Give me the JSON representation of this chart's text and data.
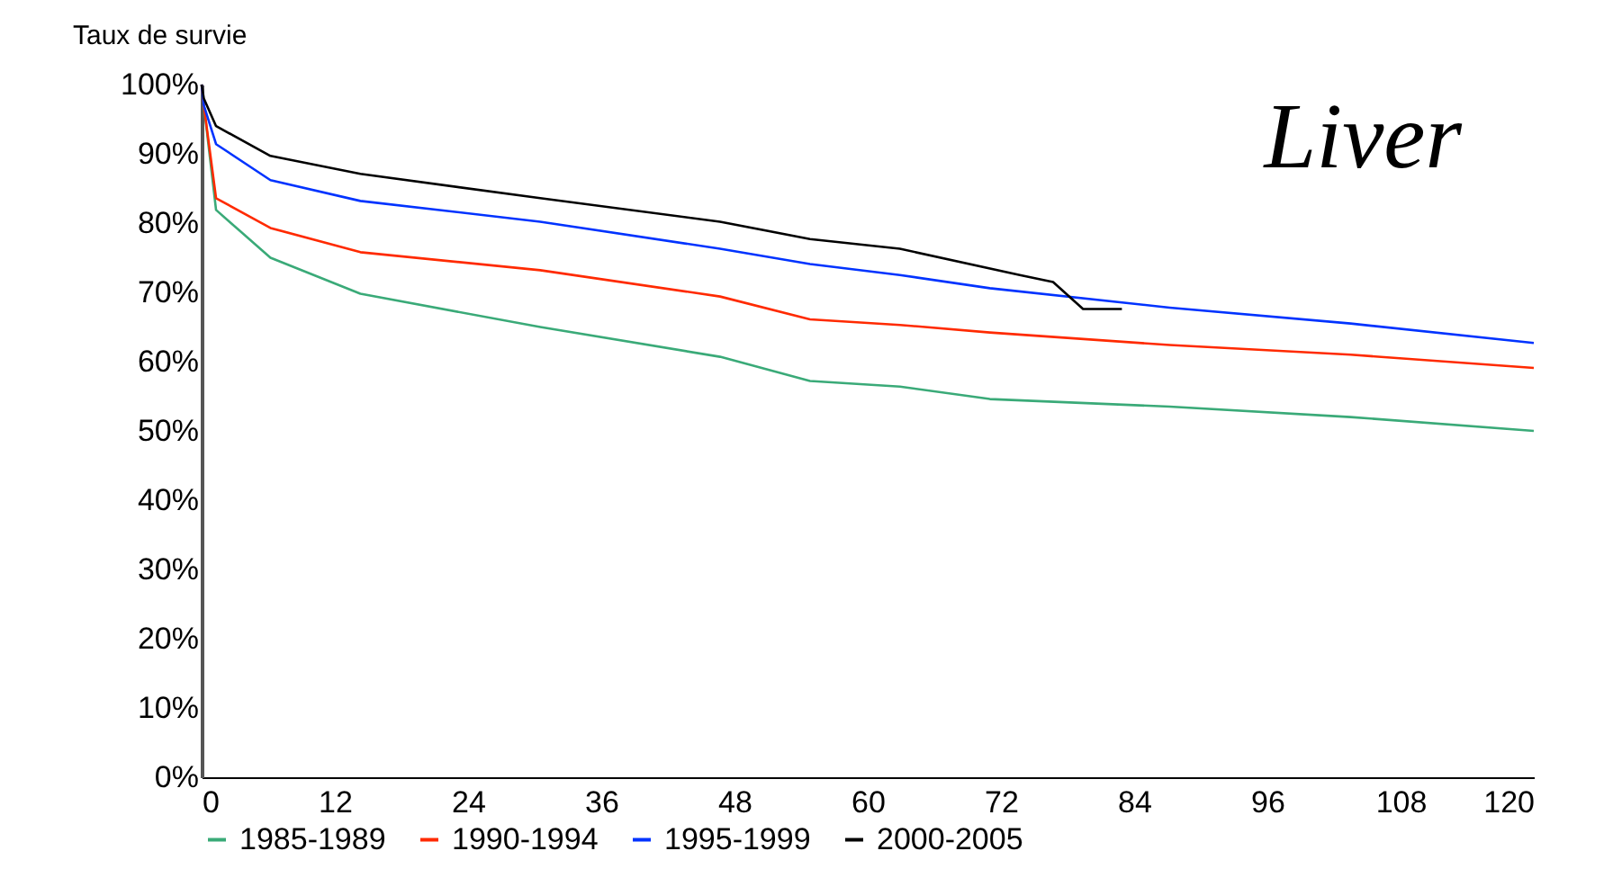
{
  "chart_data": {
    "type": "line",
    "ylabel": "Taux de survie",
    "annotations": [
      "Liver"
    ],
    "xlim": [
      0,
      120
    ],
    "xticks": [
      0,
      12,
      24,
      36,
      48,
      60,
      72,
      84,
      96,
      108,
      120
    ],
    "ylim": [
      0,
      100
    ],
    "yticks": [
      {
        "value": 0,
        "label": "0%"
      },
      {
        "value": 10,
        "label": "10%"
      },
      {
        "value": 20,
        "label": "20%"
      },
      {
        "value": 30,
        "label": "30%"
      },
      {
        "value": 40,
        "label": "40%"
      },
      {
        "value": 50,
        "label": "50%"
      },
      {
        "value": 60,
        "label": "60%"
      },
      {
        "value": 70,
        "label": "70%"
      },
      {
        "value": 80,
        "label": "80%"
      },
      {
        "value": 90,
        "label": "90%"
      },
      {
        "value": 100,
        "label": "100%"
      }
    ],
    "grid": false,
    "legend": "bottom",
    "marker": "none",
    "line_style": "solid",
    "series": [
      {
        "name": "1985-1989",
        "color": "#3aaa78",
        "x": [
          0,
          0.2,
          1.3,
          6.2,
          14.3,
          30.5,
          46.7,
          54.8,
          62.9,
          71,
          87.2,
          103.5,
          120
        ],
        "values": [
          100,
          97,
          81.9,
          75,
          69.8,
          65,
          60.7,
          57.2,
          56.4,
          54.6,
          53.5,
          52,
          50
        ]
      },
      {
        "name": "1990-1994",
        "color": "#ff2a00",
        "x": [
          0,
          0.2,
          1.3,
          6.2,
          14.3,
          30.5,
          46.7,
          54.8,
          62.9,
          71,
          87.2,
          103.5,
          120
        ],
        "values": [
          100,
          97,
          83.6,
          79.3,
          75.8,
          73.2,
          69.4,
          66.1,
          65.3,
          64.2,
          62.4,
          61,
          59.1
        ]
      },
      {
        "name": "1995-1999",
        "color": "#0033ff",
        "x": [
          0,
          0.2,
          1.3,
          6.2,
          14.3,
          30.5,
          46.7,
          54.8,
          62.9,
          71,
          87.2,
          103.5,
          120
        ],
        "values": [
          100,
          97,
          91.4,
          86.2,
          83.2,
          80.2,
          76.3,
          74.1,
          72.5,
          70.6,
          67.8,
          65.5,
          62.7
        ]
      },
      {
        "name": "2000-2005",
        "color": "#000000",
        "x": [
          0,
          0.2,
          1.3,
          6.2,
          14.3,
          30.5,
          46.7,
          54.8,
          62.9,
          73.7,
          76.7,
          79.4,
          82.9
        ],
        "values": [
          100,
          98,
          94,
          89.7,
          87.1,
          83.6,
          80.2,
          77.7,
          76.3,
          72.5,
          71.5,
          67.6,
          67.6
        ]
      }
    ]
  }
}
